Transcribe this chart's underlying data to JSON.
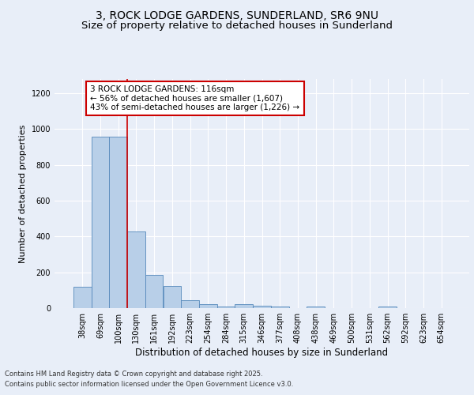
{
  "title1": "3, ROCK LODGE GARDENS, SUNDERLAND, SR6 9NU",
  "title2": "Size of property relative to detached houses in Sunderland",
  "xlabel": "Distribution of detached houses by size in Sunderland",
  "ylabel": "Number of detached properties",
  "categories": [
    "38sqm",
    "69sqm",
    "100sqm",
    "130sqm",
    "161sqm",
    "192sqm",
    "223sqm",
    "254sqm",
    "284sqm",
    "315sqm",
    "346sqm",
    "377sqm",
    "408sqm",
    "438sqm",
    "469sqm",
    "500sqm",
    "531sqm",
    "562sqm",
    "592sqm",
    "623sqm",
    "654sqm"
  ],
  "values": [
    120,
    960,
    960,
    430,
    185,
    125,
    45,
    20,
    10,
    20,
    15,
    10,
    0,
    8,
    0,
    0,
    0,
    8,
    0,
    0,
    0
  ],
  "bar_color": "#b8cfe8",
  "bar_edge_color": "#5588bb",
  "ylim": [
    0,
    1280
  ],
  "yticks": [
    0,
    200,
    400,
    600,
    800,
    1000,
    1200
  ],
  "red_line_x": 2.5,
  "annotation_text": "3 ROCK LODGE GARDENS: 116sqm\n← 56% of detached houses are smaller (1,607)\n43% of semi-detached houses are larger (1,226) →",
  "footer1": "Contains HM Land Registry data © Crown copyright and database right 2025.",
  "footer2": "Contains public sector information licensed under the Open Government Licence v3.0.",
  "bg_color": "#e8eef8",
  "plot_bg_color": "#e8eef8",
  "title1_fontsize": 10,
  "title2_fontsize": 9.5,
  "grid_color": "#ffffff",
  "red_line_color": "#cc0000",
  "ylabel_fontsize": 8,
  "xlabel_fontsize": 8.5,
  "tick_fontsize": 7,
  "annotation_fontsize": 7.5,
  "footer_fontsize": 6
}
